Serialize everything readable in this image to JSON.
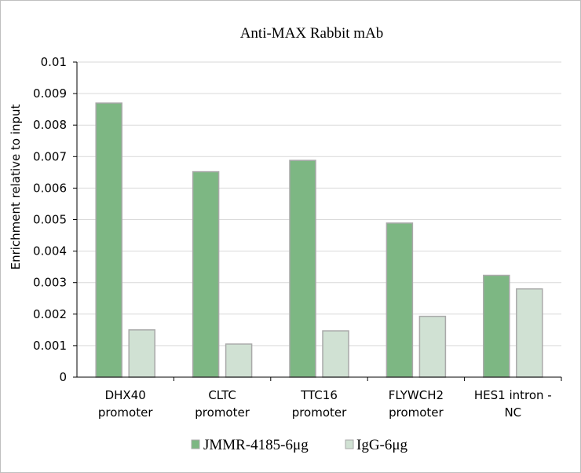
{
  "chart_data": {
    "type": "bar",
    "title": "Anti-MAX Rabbit mAb",
    "xlabel": "",
    "ylabel": "Enrichment relative to input",
    "ylim": [
      0,
      0.01
    ],
    "yticks": [
      "0",
      "0.001",
      "0.002",
      "0.003",
      "0.004",
      "0.005",
      "0.006",
      "0.007",
      "0.008",
      "0.009",
      "0.01"
    ],
    "grid": true,
    "legend_position": "bottom",
    "categories": [
      [
        "DHX40",
        "promoter"
      ],
      [
        "CLTC",
        "promoter"
      ],
      [
        "TTC16",
        "promoter"
      ],
      [
        "FLYWCH2",
        "promoter"
      ],
      [
        "HES1   intron -",
        "NC"
      ]
    ],
    "series": [
      {
        "name": "JMMR-4185-6μg",
        "color": "#7db783",
        "stroke": "#a9a9a9",
        "values": [
          0.0087,
          0.00652,
          0.00688,
          0.00489,
          0.00323
        ]
      },
      {
        "name": "IgG-6μg",
        "color": "#d0e1d3",
        "stroke": "#a9a9a9",
        "values": [
          0.0015,
          0.00105,
          0.00147,
          0.00193,
          0.0028
        ]
      }
    ]
  }
}
